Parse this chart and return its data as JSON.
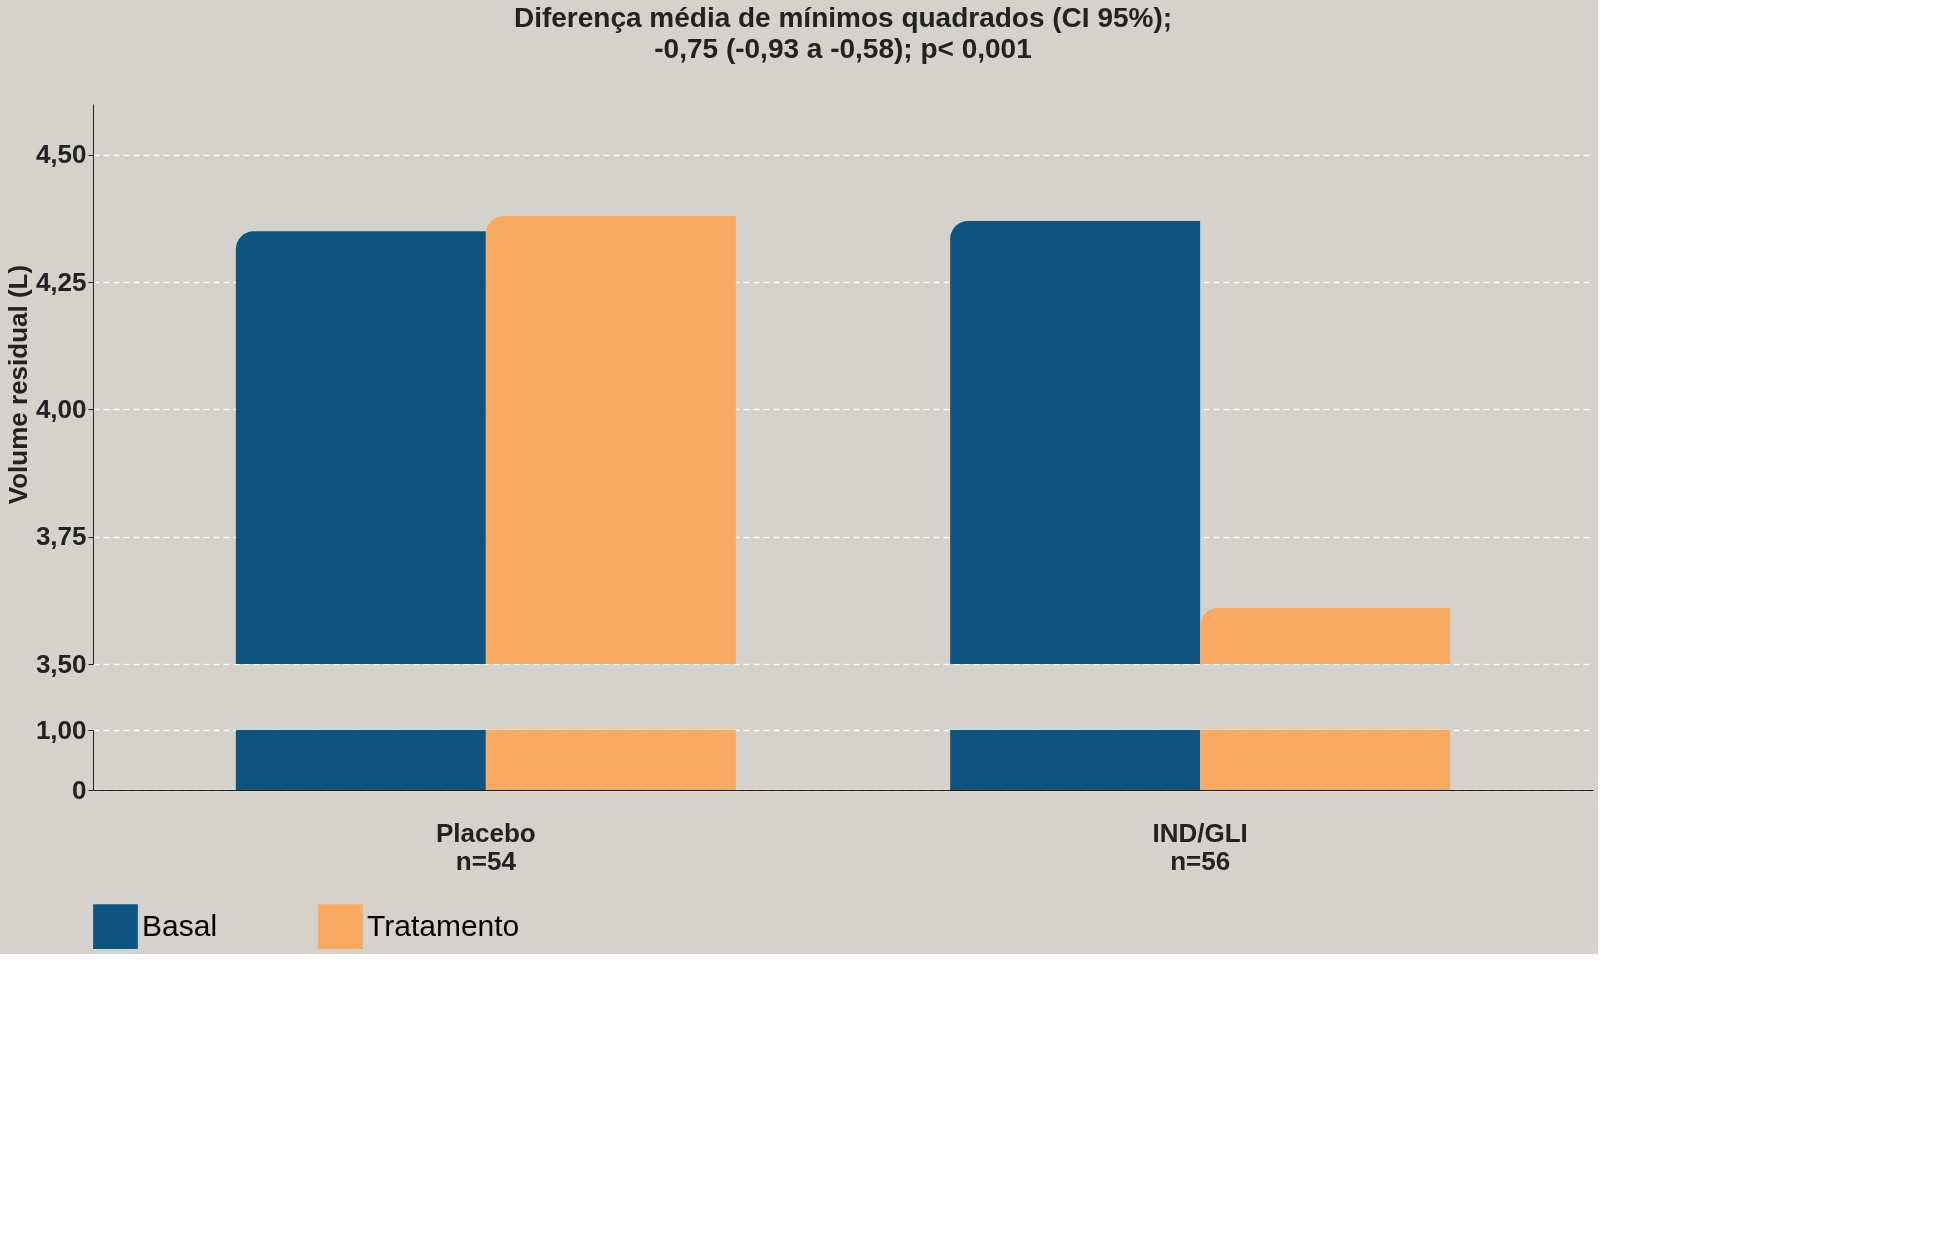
{
  "chart_data": [
    {
      "type": "bar",
      "title": "Diferença média de mínimos quadrados (CI 95%);",
      "subtitle": "-0,75 (-0,93 a -0,58); p< 0,001",
      "ylabel": "Volume residual (L)",
      "categories": [
        null,
        null
      ],
      "series": [
        {
          "color": "#0d5580",
          "values": [
            4.35,
            4.37
          ]
        },
        {
          "color": "#f8a962",
          "values": [
            4.38,
            3.61
          ]
        }
      ],
      "ylim": [
        3.5,
        4.6
      ],
      "yticks": [
        {
          "value": 3.5,
          "label": "3,50"
        },
        {
          "value": 3.75,
          "label": "3,75"
        },
        {
          "value": 4.0,
          "label": "4,00"
        },
        {
          "value": 4.25,
          "label": "4,25"
        },
        {
          "value": 4.5,
          "label": "4,50"
        }
      ],
      "tick_labels": "y",
      "grid": "y"
    },
    {
      "type": "bar",
      "categories": [
        "Placebo\nn=54",
        "IND/GLI\nn=56"
      ],
      "series": [
        {
          "name": "Basal",
          "color": "#0d5580",
          "values": [
            1.0,
            1.0
          ]
        },
        {
          "name": "Tratamento",
          "color": "#f8a962",
          "values": [
            1.0,
            1.0
          ]
        }
      ],
      "ylim": [
        0,
        1.0
      ],
      "yticks": [
        0,
        {
          "value": 1.0,
          "label": "1,00"
        }
      ],
      "grid": "y",
      "legend": "bottom"
    }
  ]
}
